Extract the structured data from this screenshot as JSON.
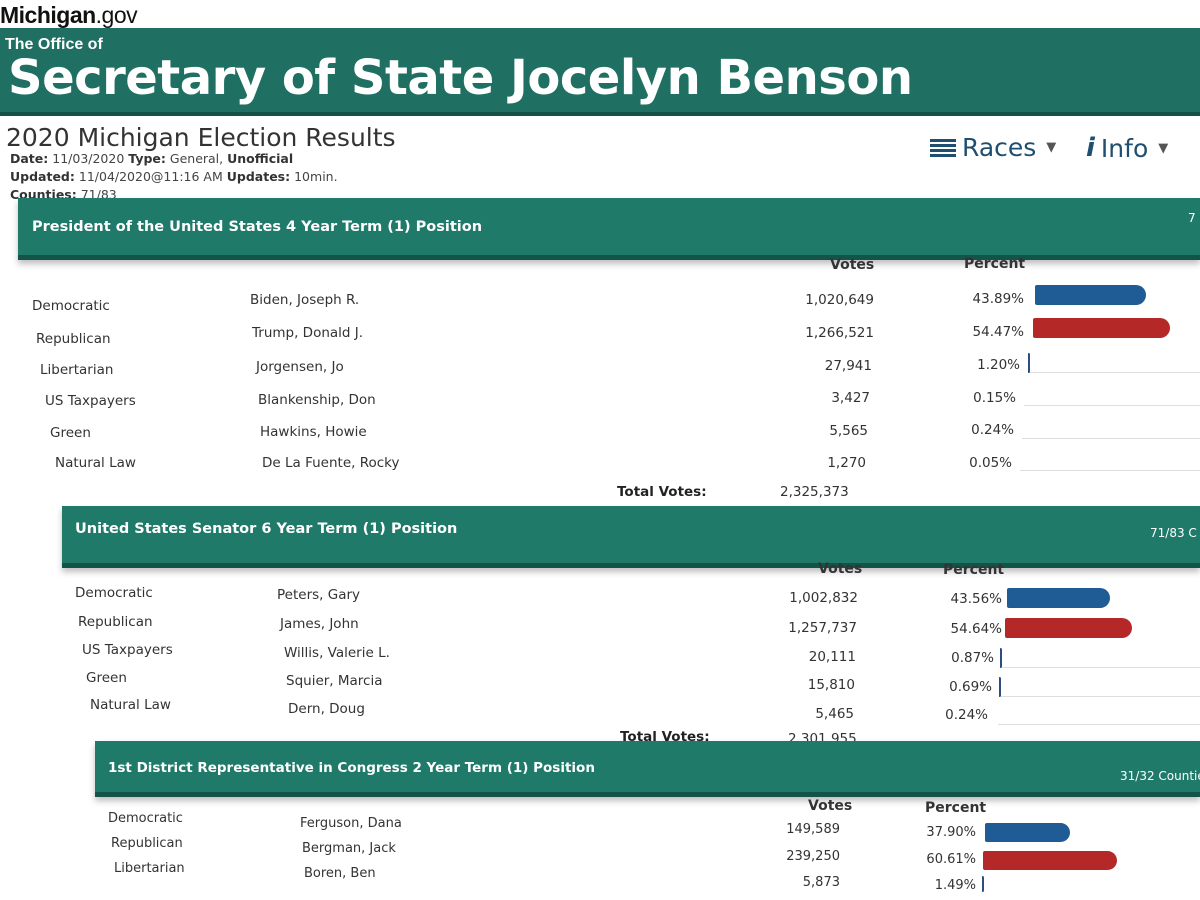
{
  "site": {
    "brand": "Michigan",
    "brand_suffix": ".gov"
  },
  "header": {
    "office_of": "The Office of",
    "title": "Secretary of State Jocelyn Benson"
  },
  "election": {
    "title": "2020 Michigan Election Results",
    "date_label": "Date:",
    "date": "11/03/2020",
    "type_label": "Type:",
    "type": "General,",
    "status": "Unofficial",
    "updated_label": "Updated:",
    "updated": "11/04/2020@11:16 AM",
    "updates_label": "Updates:",
    "updates": "10min.",
    "counties_label": "Counties:",
    "counties": "71/83"
  },
  "nav": {
    "races_label": "Races",
    "info_label": "Info"
  },
  "columns": {
    "votes": "Votes",
    "percent": "Percent",
    "total_votes": "Total Votes:"
  },
  "colors": {
    "banner": "#1f6f62",
    "race_header": "#1f7a6a",
    "dem_bar": "#1f5b94",
    "rep_bar": "#b52828"
  },
  "races": [
    {
      "title": "President of the United States 4 Year Term (1) Position",
      "counties": "7",
      "total": "2,325,373",
      "rows": [
        {
          "party": "Democratic",
          "candidate": "Biden, Joseph R.",
          "votes": "1,020,649",
          "percent": "43.89%",
          "bar": "dem",
          "share": 43.89
        },
        {
          "party": "Republican",
          "candidate": "Trump, Donald J.",
          "votes": "1,266,521",
          "percent": "54.47%",
          "bar": "rep",
          "share": 54.47
        },
        {
          "party": "Libertarian",
          "candidate": "Jorgensen, Jo",
          "votes": "27,941",
          "percent": "1.20%",
          "bar": "other",
          "share": 1.2
        },
        {
          "party": "US Taxpayers",
          "candidate": "Blankenship, Don",
          "votes": "3,427",
          "percent": "0.15%",
          "bar": "none",
          "share": 0.15
        },
        {
          "party": "Green",
          "candidate": "Hawkins, Howie",
          "votes": "5,565",
          "percent": "0.24%",
          "bar": "none",
          "share": 0.24
        },
        {
          "party": "Natural Law",
          "candidate": "De La Fuente, Rocky",
          "votes": "1,270",
          "percent": "0.05%",
          "bar": "none",
          "share": 0.05
        }
      ]
    },
    {
      "title": "United States Senator 6 Year Term (1) Position",
      "counties": "71/83 C",
      "total": "2,301,955",
      "rows": [
        {
          "party": "Democratic",
          "candidate": "Peters, Gary",
          "votes": "1,002,832",
          "percent": "43.56%",
          "bar": "dem",
          "share": 43.56
        },
        {
          "party": "Republican",
          "candidate": "James, John",
          "votes": "1,257,737",
          "percent": "54.64%",
          "bar": "rep",
          "share": 54.64
        },
        {
          "party": "US Taxpayers",
          "candidate": "Willis, Valerie L.",
          "votes": "20,111",
          "percent": "0.87%",
          "bar": "other",
          "share": 0.87
        },
        {
          "party": "Green",
          "candidate": "Squier, Marcia",
          "votes": "15,810",
          "percent": "0.69%",
          "bar": "other",
          "share": 0.69
        },
        {
          "party": "Natural Law",
          "candidate": "Dern, Doug",
          "votes": "5,465",
          "percent": "0.24%",
          "bar": "none",
          "share": 0.24
        }
      ]
    },
    {
      "title": "1st District Representative in Congress 2 Year Term (1) Position",
      "counties": "31/32 Countie",
      "total": "",
      "rows": [
        {
          "party": "Democratic",
          "candidate": "Ferguson, Dana",
          "votes": "149,589",
          "percent": "37.90%",
          "bar": "dem",
          "share": 37.9
        },
        {
          "party": "Republican",
          "candidate": "Bergman, Jack",
          "votes": "239,250",
          "percent": "60.61%",
          "bar": "rep",
          "share": 60.61
        },
        {
          "party": "Libertarian",
          "candidate": "Boren, Ben",
          "votes": "5,873",
          "percent": "1.49%",
          "bar": "other",
          "share": 1.49
        }
      ]
    }
  ]
}
